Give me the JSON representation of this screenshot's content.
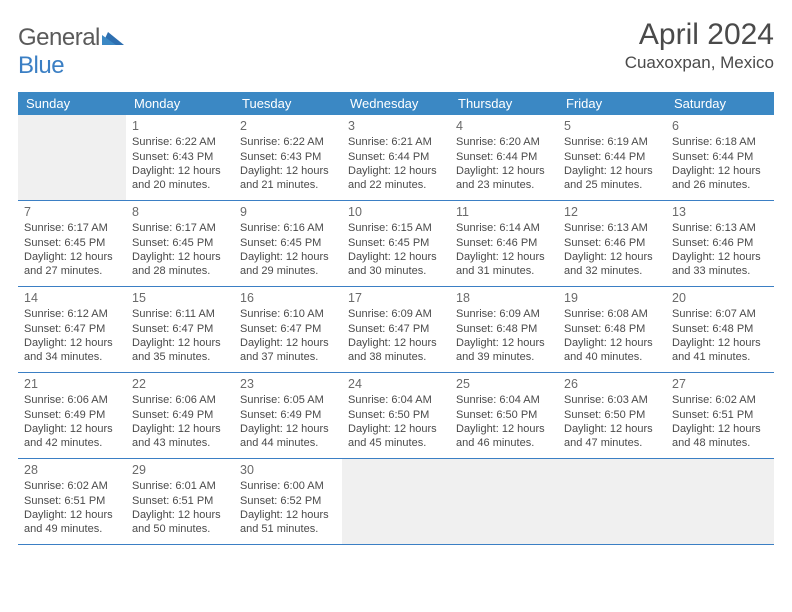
{
  "logo_text_1": "General",
  "logo_text_2": "Blue",
  "month_title": "April 2024",
  "location": "Cuaxoxpan, Mexico",
  "weekdays": [
    "Sunday",
    "Monday",
    "Tuesday",
    "Wednesday",
    "Thursday",
    "Friday",
    "Saturday"
  ],
  "colors": {
    "header_bg": "#3b88c4",
    "header_text": "#ffffff",
    "border": "#3b7fc4",
    "empty_bg": "#f0f0f0",
    "text": "#4a4a4a"
  },
  "weeks": [
    [
      {
        "empty": true
      },
      {
        "day": "1",
        "sunrise": "Sunrise: 6:22 AM",
        "sunset": "Sunset: 6:43 PM",
        "daylight": "Daylight: 12 hours and 20 minutes."
      },
      {
        "day": "2",
        "sunrise": "Sunrise: 6:22 AM",
        "sunset": "Sunset: 6:43 PM",
        "daylight": "Daylight: 12 hours and 21 minutes."
      },
      {
        "day": "3",
        "sunrise": "Sunrise: 6:21 AM",
        "sunset": "Sunset: 6:44 PM",
        "daylight": "Daylight: 12 hours and 22 minutes."
      },
      {
        "day": "4",
        "sunrise": "Sunrise: 6:20 AM",
        "sunset": "Sunset: 6:44 PM",
        "daylight": "Daylight: 12 hours and 23 minutes."
      },
      {
        "day": "5",
        "sunrise": "Sunrise: 6:19 AM",
        "sunset": "Sunset: 6:44 PM",
        "daylight": "Daylight: 12 hours and 25 minutes."
      },
      {
        "day": "6",
        "sunrise": "Sunrise: 6:18 AM",
        "sunset": "Sunset: 6:44 PM",
        "daylight": "Daylight: 12 hours and 26 minutes."
      }
    ],
    [
      {
        "day": "7",
        "sunrise": "Sunrise: 6:17 AM",
        "sunset": "Sunset: 6:45 PM",
        "daylight": "Daylight: 12 hours and 27 minutes."
      },
      {
        "day": "8",
        "sunrise": "Sunrise: 6:17 AM",
        "sunset": "Sunset: 6:45 PM",
        "daylight": "Daylight: 12 hours and 28 minutes."
      },
      {
        "day": "9",
        "sunrise": "Sunrise: 6:16 AM",
        "sunset": "Sunset: 6:45 PM",
        "daylight": "Daylight: 12 hours and 29 minutes."
      },
      {
        "day": "10",
        "sunrise": "Sunrise: 6:15 AM",
        "sunset": "Sunset: 6:45 PM",
        "daylight": "Daylight: 12 hours and 30 minutes."
      },
      {
        "day": "11",
        "sunrise": "Sunrise: 6:14 AM",
        "sunset": "Sunset: 6:46 PM",
        "daylight": "Daylight: 12 hours and 31 minutes."
      },
      {
        "day": "12",
        "sunrise": "Sunrise: 6:13 AM",
        "sunset": "Sunset: 6:46 PM",
        "daylight": "Daylight: 12 hours and 32 minutes."
      },
      {
        "day": "13",
        "sunrise": "Sunrise: 6:13 AM",
        "sunset": "Sunset: 6:46 PM",
        "daylight": "Daylight: 12 hours and 33 minutes."
      }
    ],
    [
      {
        "day": "14",
        "sunrise": "Sunrise: 6:12 AM",
        "sunset": "Sunset: 6:47 PM",
        "daylight": "Daylight: 12 hours and 34 minutes."
      },
      {
        "day": "15",
        "sunrise": "Sunrise: 6:11 AM",
        "sunset": "Sunset: 6:47 PM",
        "daylight": "Daylight: 12 hours and 35 minutes."
      },
      {
        "day": "16",
        "sunrise": "Sunrise: 6:10 AM",
        "sunset": "Sunset: 6:47 PM",
        "daylight": "Daylight: 12 hours and 37 minutes."
      },
      {
        "day": "17",
        "sunrise": "Sunrise: 6:09 AM",
        "sunset": "Sunset: 6:47 PM",
        "daylight": "Daylight: 12 hours and 38 minutes."
      },
      {
        "day": "18",
        "sunrise": "Sunrise: 6:09 AM",
        "sunset": "Sunset: 6:48 PM",
        "daylight": "Daylight: 12 hours and 39 minutes."
      },
      {
        "day": "19",
        "sunrise": "Sunrise: 6:08 AM",
        "sunset": "Sunset: 6:48 PM",
        "daylight": "Daylight: 12 hours and 40 minutes."
      },
      {
        "day": "20",
        "sunrise": "Sunrise: 6:07 AM",
        "sunset": "Sunset: 6:48 PM",
        "daylight": "Daylight: 12 hours and 41 minutes."
      }
    ],
    [
      {
        "day": "21",
        "sunrise": "Sunrise: 6:06 AM",
        "sunset": "Sunset: 6:49 PM",
        "daylight": "Daylight: 12 hours and 42 minutes."
      },
      {
        "day": "22",
        "sunrise": "Sunrise: 6:06 AM",
        "sunset": "Sunset: 6:49 PM",
        "daylight": "Daylight: 12 hours and 43 minutes."
      },
      {
        "day": "23",
        "sunrise": "Sunrise: 6:05 AM",
        "sunset": "Sunset: 6:49 PM",
        "daylight": "Daylight: 12 hours and 44 minutes."
      },
      {
        "day": "24",
        "sunrise": "Sunrise: 6:04 AM",
        "sunset": "Sunset: 6:50 PM",
        "daylight": "Daylight: 12 hours and 45 minutes."
      },
      {
        "day": "25",
        "sunrise": "Sunrise: 6:04 AM",
        "sunset": "Sunset: 6:50 PM",
        "daylight": "Daylight: 12 hours and 46 minutes."
      },
      {
        "day": "26",
        "sunrise": "Sunrise: 6:03 AM",
        "sunset": "Sunset: 6:50 PM",
        "daylight": "Daylight: 12 hours and 47 minutes."
      },
      {
        "day": "27",
        "sunrise": "Sunrise: 6:02 AM",
        "sunset": "Sunset: 6:51 PM",
        "daylight": "Daylight: 12 hours and 48 minutes."
      }
    ],
    [
      {
        "day": "28",
        "sunrise": "Sunrise: 6:02 AM",
        "sunset": "Sunset: 6:51 PM",
        "daylight": "Daylight: 12 hours and 49 minutes."
      },
      {
        "day": "29",
        "sunrise": "Sunrise: 6:01 AM",
        "sunset": "Sunset: 6:51 PM",
        "daylight": "Daylight: 12 hours and 50 minutes."
      },
      {
        "day": "30",
        "sunrise": "Sunrise: 6:00 AM",
        "sunset": "Sunset: 6:52 PM",
        "daylight": "Daylight: 12 hours and 51 minutes."
      },
      {
        "empty": true
      },
      {
        "empty": true
      },
      {
        "empty": true
      },
      {
        "empty": true
      }
    ]
  ]
}
